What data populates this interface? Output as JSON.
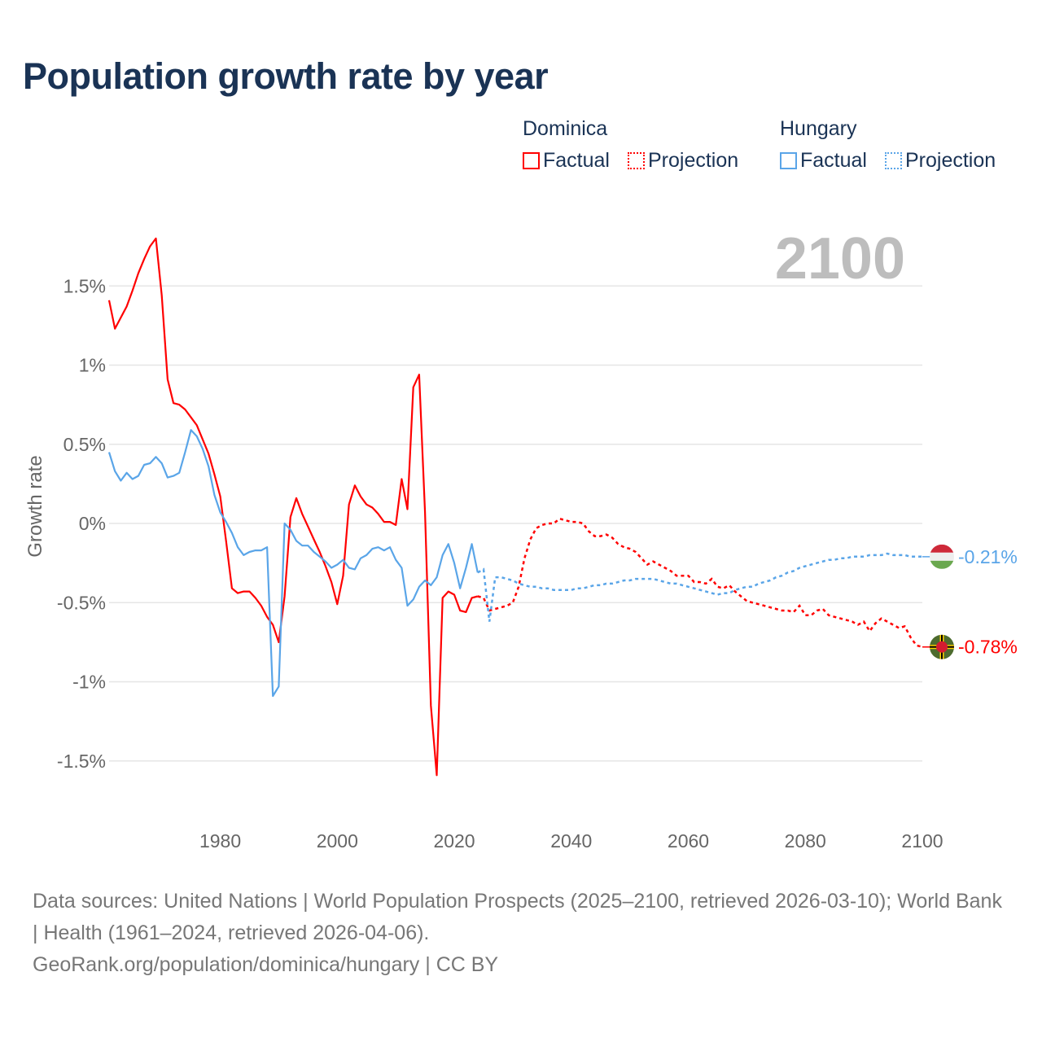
{
  "title": "Population growth rate by year",
  "legend": [
    {
      "group": "Dominica",
      "factual": "Factual",
      "projection": "Projection",
      "color": "#ff0000"
    },
    {
      "group": "Hungary",
      "factual": "Factual",
      "projection": "Projection",
      "color": "#5aa5e8"
    }
  ],
  "year_display": "2100",
  "footer": {
    "sources": "Data sources: United Nations | World Population Prospects (2025–2100, retrieved 2026-03-10); World Bank | Health (1961–2024, retrieved 2026-04-06).",
    "link": "GeoRank.org/population/dominica/hungary | CC BY"
  },
  "chart_data": {
    "type": "line",
    "title": "Population growth rate by year",
    "xlabel": "",
    "ylabel": "Growth rate",
    "xlim": [
      1961,
      2100
    ],
    "ylim": [
      -1.75,
      1.85
    ],
    "x_ticks": [
      1980,
      2000,
      2020,
      2040,
      2060,
      2080,
      2100
    ],
    "y_ticks": [
      {
        "v": 1.5,
        "label": "1.5%"
      },
      {
        "v": 1,
        "label": "1%"
      },
      {
        "v": 0.5,
        "label": "0.5%"
      },
      {
        "v": 0,
        "label": "0%"
      },
      {
        "v": -0.5,
        "label": "-0.5%"
      },
      {
        "v": -1,
        "label": "-1%"
      },
      {
        "v": -1.5,
        "label": "-1.5%"
      }
    ],
    "grid": true,
    "legend_placement": "top-right",
    "series": [
      {
        "name": "Dominica",
        "color": "#ff0000",
        "end_label": "-0.78%",
        "flag_icon": "dominica-flag-icon",
        "factual_start": 1961,
        "factual": [
          1.41,
          1.23,
          1.3,
          1.37,
          1.47,
          1.58,
          1.67,
          1.75,
          1.8,
          1.44,
          0.91,
          0.76,
          0.75,
          0.72,
          0.67,
          0.62,
          0.53,
          0.44,
          0.31,
          0.17,
          -0.11,
          -0.41,
          -0.44,
          -0.43,
          -0.43,
          -0.47,
          -0.52,
          -0.59,
          -0.64,
          -0.75,
          -0.46,
          0.04,
          0.16,
          0.06,
          -0.02,
          -0.1,
          -0.18,
          -0.27,
          -0.37,
          -0.51,
          -0.33,
          0.12,
          0.24,
          0.17,
          0.12,
          0.1,
          0.06,
          0.01,
          0.01,
          -0.01,
          0.28,
          0.09,
          0.86,
          0.94,
          0.07,
          -1.15,
          -1.59,
          -0.47,
          -0.43,
          -0.45,
          -0.55,
          -0.56,
          -0.47,
          -0.46
        ],
        "projection_start": 2024,
        "projection": [
          -0.46,
          -0.47,
          -0.55,
          -0.54,
          -0.53,
          -0.52,
          -0.5,
          -0.4,
          -0.22,
          -0.1,
          -0.03,
          -0.01,
          0.0,
          0.0,
          0.03,
          0.02,
          0.01,
          0.01,
          0.0,
          -0.05,
          -0.08,
          -0.08,
          -0.07,
          -0.09,
          -0.13,
          -0.15,
          -0.16,
          -0.18,
          -0.22,
          -0.26,
          -0.24,
          -0.26,
          -0.28,
          -0.3,
          -0.33,
          -0.33,
          -0.33,
          -0.37,
          -0.37,
          -0.38,
          -0.35,
          -0.4,
          -0.41,
          -0.39,
          -0.43,
          -0.46,
          -0.49,
          -0.5,
          -0.51,
          -0.52,
          -0.53,
          -0.54,
          -0.55,
          -0.55,
          -0.56,
          -0.52,
          -0.58,
          -0.58,
          -0.55,
          -0.54,
          -0.58,
          -0.59,
          -0.6,
          -0.61,
          -0.62,
          -0.64,
          -0.62,
          -0.68,
          -0.63,
          -0.6,
          -0.62,
          -0.64,
          -0.66,
          -0.65,
          -0.72,
          -0.77,
          -0.78
        ]
      },
      {
        "name": "Hungary",
        "color": "#5aa5e8",
        "end_label": "-0.21%",
        "flag_icon": "hungary-flag-icon",
        "factual_start": 1961,
        "factual": [
          0.45,
          0.33,
          0.27,
          0.32,
          0.28,
          0.3,
          0.37,
          0.38,
          0.42,
          0.38,
          0.29,
          0.3,
          0.32,
          0.45,
          0.59,
          0.55,
          0.47,
          0.36,
          0.18,
          0.07,
          0.01,
          -0.06,
          -0.15,
          -0.2,
          -0.18,
          -0.17,
          -0.17,
          -0.15,
          -1.09,
          -1.03,
          0.0,
          -0.04,
          -0.11,
          -0.14,
          -0.14,
          -0.18,
          -0.21,
          -0.24,
          -0.28,
          -0.26,
          -0.23,
          -0.28,
          -0.29,
          -0.22,
          -0.2,
          -0.16,
          -0.15,
          -0.17,
          -0.15,
          -0.23,
          -0.28,
          -0.52,
          -0.48,
          -0.4,
          -0.36,
          -0.39,
          -0.34,
          -0.2,
          -0.13,
          -0.25,
          -0.41,
          -0.28,
          -0.13,
          -0.31
        ],
        "projection_start": 2024,
        "projection": [
          -0.31,
          -0.29,
          -0.62,
          -0.34,
          -0.34,
          -0.35,
          -0.36,
          -0.38,
          -0.39,
          -0.4,
          -0.4,
          -0.41,
          -0.41,
          -0.42,
          -0.42,
          -0.42,
          -0.42,
          -0.41,
          -0.41,
          -0.4,
          -0.39,
          -0.39,
          -0.38,
          -0.38,
          -0.37,
          -0.36,
          -0.36,
          -0.35,
          -0.35,
          -0.35,
          -0.35,
          -0.36,
          -0.37,
          -0.38,
          -0.38,
          -0.39,
          -0.4,
          -0.41,
          -0.42,
          -0.43,
          -0.44,
          -0.45,
          -0.44,
          -0.44,
          -0.42,
          -0.41,
          -0.4,
          -0.4,
          -0.38,
          -0.37,
          -0.36,
          -0.34,
          -0.33,
          -0.31,
          -0.3,
          -0.28,
          -0.27,
          -0.26,
          -0.25,
          -0.24,
          -0.23,
          -0.23,
          -0.22,
          -0.22,
          -0.21,
          -0.21,
          -0.21,
          -0.2,
          -0.2,
          -0.2,
          -0.19,
          -0.2,
          -0.2,
          -0.2,
          -0.21,
          -0.21,
          -0.21
        ]
      }
    ]
  }
}
